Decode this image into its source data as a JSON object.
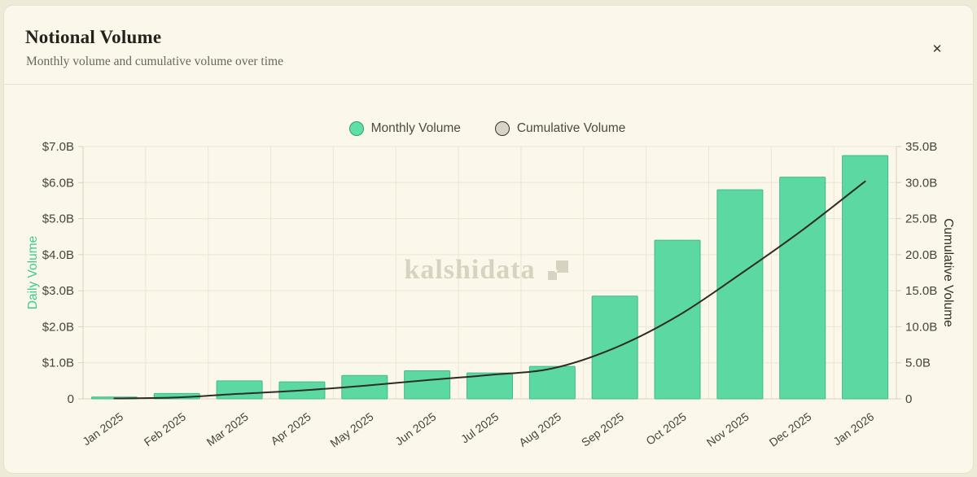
{
  "header": {
    "title": "Notional Volume",
    "subtitle": "Monthly volume and cumulative volume over time",
    "close_label": "✕"
  },
  "legend": [
    {
      "label": "Monthly Volume",
      "color": "#5fdfa8",
      "border": "#2f9c74"
    },
    {
      "label": "Cumulative Volume",
      "color": "#d9d4c5",
      "border": "#35342c"
    }
  ],
  "watermark": {
    "text": "kalshidata"
  },
  "chart_data": {
    "type": "bar",
    "subtype": "combo-bar-line",
    "categories": [
      "Jan 2025",
      "Feb 2025",
      "Mar 2025",
      "Apr 2025",
      "May 2025",
      "Jun 2025",
      "Jul 2025",
      "Aug 2025",
      "Sep 2025",
      "Oct 2025",
      "Nov 2025",
      "Dec 2025",
      "Jan 2026"
    ],
    "series": [
      {
        "name": "Monthly Volume",
        "type": "bar",
        "axis": "left",
        "unit": "USD billions",
        "values": [
          0.05,
          0.15,
          0.5,
          0.47,
          0.65,
          0.78,
          0.72,
          0.9,
          2.85,
          4.4,
          5.8,
          6.15,
          6.75
        ]
      },
      {
        "name": "Cumulative Volume",
        "type": "line",
        "axis": "right",
        "unit": "USD billions",
        "values": [
          0.05,
          0.2,
          0.7,
          1.17,
          1.82,
          2.6,
          3.32,
          4.22,
          7.07,
          11.47,
          17.27,
          23.42,
          30.17
        ]
      }
    ],
    "title": "Notional Volume",
    "left_axis": {
      "label": "Daily Volume",
      "range": [
        0,
        7
      ],
      "ticks": [
        {
          "value": 0,
          "label": "0"
        },
        {
          "value": 1,
          "label": "$1.0B"
        },
        {
          "value": 2,
          "label": "$2.0B"
        },
        {
          "value": 3,
          "label": "$3.0B"
        },
        {
          "value": 4,
          "label": "$4.0B"
        },
        {
          "value": 5,
          "label": "$5.0B"
        },
        {
          "value": 6,
          "label": "$6.0B"
        },
        {
          "value": 7,
          "label": "$7.0B"
        }
      ]
    },
    "right_axis": {
      "label": "Cumulative Volume",
      "range": [
        0,
        35
      ],
      "ticks": [
        {
          "value": 0,
          "label": "0"
        },
        {
          "value": 5,
          "label": "5.0B"
        },
        {
          "value": 10,
          "label": "10.0B"
        },
        {
          "value": 15,
          "label": "15.0B"
        },
        {
          "value": 20,
          "label": "20.0B"
        },
        {
          "value": 25,
          "label": "25.0B"
        },
        {
          "value": 30,
          "label": "30.0B"
        },
        {
          "value": 35,
          "label": "35.0B"
        }
      ]
    },
    "grid": true,
    "legend_position": "top-center"
  },
  "colors": {
    "background": "#fbf7ea",
    "page_background": "#efe9d7",
    "bar_fill": "#5cd9a3",
    "bar_stroke": "#40bb8a",
    "line": "#2d2c25",
    "grid": "#ebe5d4",
    "axis_line": "#d8d2bf",
    "tick_text": "#46453c",
    "left_axis_title": "#3ecb92",
    "right_axis_title": "#2e2d26",
    "watermark": "#d8d2c0"
  }
}
